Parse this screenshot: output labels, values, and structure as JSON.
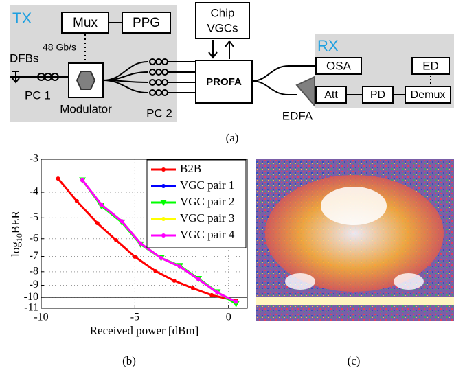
{
  "diagram": {
    "tx": "TX",
    "mux": "Mux",
    "ppg": "PPG",
    "rate": "48 Gb/s",
    "dfbs": "DFBs",
    "pc1": "PC 1",
    "modulator": "Modulator",
    "pc2": "PC 2",
    "chip_vgcs": [
      "Chip",
      "VGCs"
    ],
    "profa": "PROFA",
    "rx": "RX",
    "osa": "OSA",
    "ed": "ED",
    "att": "Att",
    "pd": "PD",
    "demux": "Demux",
    "edfa": "EDFA",
    "caption": "(a)"
  },
  "chart_data": {
    "type": "line",
    "caption": "(b)",
    "xlabel": "Received power [dBm]",
    "ylabel": {
      "base": "log",
      "sub": "10",
      "rest": "BER"
    },
    "xlim": [
      -10,
      1
    ],
    "xticks": [
      -10,
      -5,
      0
    ],
    "ylim": [
      -11,
      -3
    ],
    "yticks": [
      -3,
      -4,
      -5,
      -6,
      -7,
      -8,
      -9,
      -10,
      -11
    ],
    "yscale": "log-negative",
    "grid": true,
    "hlines": [
      -10
    ],
    "legend": "top-right",
    "series": [
      {
        "name": "B2B",
        "color": "#ff0000",
        "marker": "circle",
        "x": [
          -9.1,
          -8.1,
          -7.0,
          -6.0,
          -5.0,
          -3.9,
          -2.9,
          -1.9,
          -0.9,
          0.4
        ],
        "values": [
          -3.55,
          -4.32,
          -5.24,
          -6.08,
          -7.02,
          -7.96,
          -8.65,
          -9.24,
          -9.81,
          -10.3
        ]
      },
      {
        "name": "VGC pair 1",
        "color": "#0000ff",
        "marker": "circle",
        "x": [
          -7.8,
          -6.8,
          -5.7,
          -4.7,
          -3.6,
          -2.6,
          -1.6,
          -0.6,
          0.4
        ],
        "values": [
          -3.6,
          -4.45,
          -5.15,
          -6.25,
          -7.1,
          -7.65,
          -8.55,
          -9.6,
          -10.4
        ]
      },
      {
        "name": "VGC pair 2",
        "color": "#00ff00",
        "marker": "triangle",
        "x": [
          -7.8,
          -6.8,
          -5.7,
          -4.7,
          -3.6,
          -2.6,
          -1.6,
          -0.6,
          0.4
        ],
        "values": [
          -3.6,
          -4.5,
          -5.2,
          -6.3,
          -7.1,
          -7.6,
          -8.5,
          -9.55,
          -10.6
        ]
      },
      {
        "name": "VGC pair 3",
        "color": "#ffff00",
        "marker": "circle",
        "x": [
          -7.8,
          -6.8,
          -5.7,
          -4.7,
          -3.6,
          -2.6,
          -1.6,
          -0.6,
          0.4
        ],
        "values": [
          -3.6,
          -4.45,
          -5.15,
          -6.25,
          -7.1,
          -7.65,
          -8.55,
          -9.6,
          -10.4
        ]
      },
      {
        "name": "VGC pair 4",
        "color": "#ff00ff",
        "marker": "circle",
        "x": [
          -7.8,
          -6.8,
          -5.7,
          -4.7,
          -3.6,
          -2.6,
          -1.6,
          -0.6,
          0.4
        ],
        "values": [
          -3.6,
          -4.45,
          -5.15,
          -6.25,
          -7.1,
          -7.65,
          -8.55,
          -9.6,
          -10.4
        ]
      }
    ]
  },
  "eye": {
    "caption": "(c)"
  }
}
